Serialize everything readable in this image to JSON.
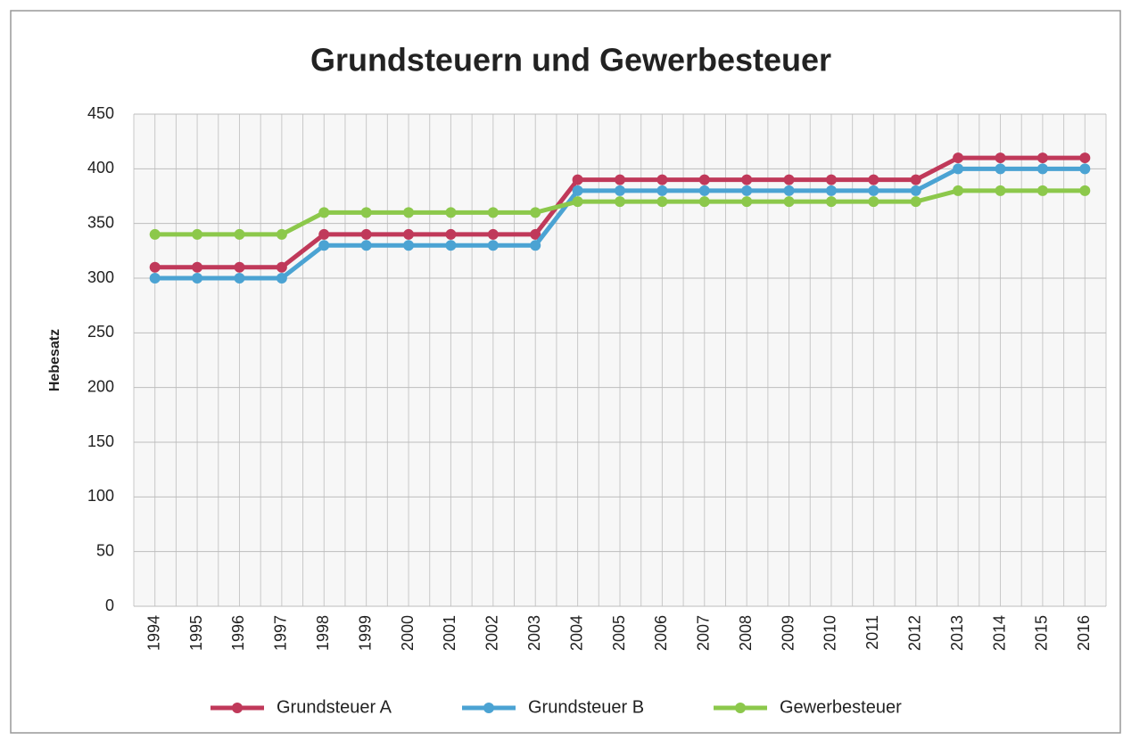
{
  "chart_data": {
    "type": "line",
    "title": "Grundsteuern und Gewerbesteuer",
    "y_label": "Hebesatz",
    "categories": [
      "1994",
      "1995",
      "1996",
      "1997",
      "1998",
      "1999",
      "2000",
      "2001",
      "2002",
      "2003",
      "2004",
      "2005",
      "2006",
      "2007",
      "2008",
      "2009",
      "2010",
      "2011",
      "2012",
      "2013",
      "2014",
      "2015",
      "2016"
    ],
    "series": [
      {
        "name": "Grundsteuer A",
        "color": "#c0395a",
        "values": [
          310,
          310,
          310,
          310,
          340,
          340,
          340,
          340,
          340,
          340,
          390,
          390,
          390,
          390,
          390,
          390,
          390,
          390,
          390,
          410,
          410,
          410,
          410
        ]
      },
      {
        "name": "Grundsteuer B",
        "color": "#4ba3d3",
        "values": [
          300,
          300,
          300,
          300,
          330,
          330,
          330,
          330,
          330,
          330,
          380,
          380,
          380,
          380,
          380,
          380,
          380,
          380,
          380,
          400,
          400,
          400,
          400
        ]
      },
      {
        "name": "Gewerbesteuer",
        "color": "#8cc84b",
        "values": [
          340,
          340,
          340,
          340,
          360,
          360,
          360,
          360,
          360,
          360,
          370,
          370,
          370,
          370,
          370,
          370,
          370,
          370,
          370,
          380,
          380,
          380,
          380
        ]
      }
    ],
    "ylim": [
      0,
      450
    ],
    "yticks": [
      0,
      50,
      100,
      150,
      200,
      250,
      300,
      350,
      400,
      450
    ],
    "grid": true,
    "legend": "bottom"
  }
}
